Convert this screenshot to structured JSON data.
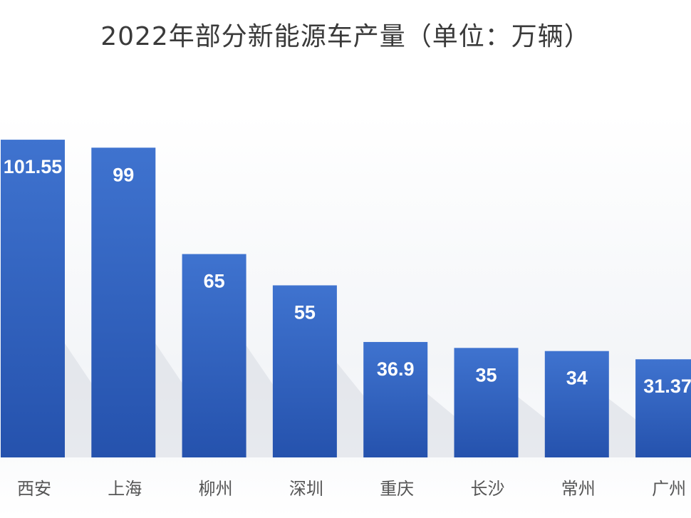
{
  "chart_data": {
    "type": "bar",
    "title": "2022年部分新能源车产量（单位：万辆）",
    "categories": [
      "西安",
      "上海",
      "柳州",
      "深圳",
      "重庆",
      "长沙",
      "常州",
      "广州"
    ],
    "values": [
      101.55,
      99,
      65,
      55,
      36.9,
      35,
      34,
      31.37
    ],
    "data_labels": [
      "101.55",
      "99",
      "65",
      "55",
      "36.9",
      "35",
      "34",
      "31.37"
    ],
    "xlabel": "",
    "ylabel": "",
    "ylim": [
      0,
      115
    ],
    "grid": false,
    "legend": "none",
    "colors": {
      "bar_top": "#3f73cf",
      "bar_bottom": "#2552ad",
      "label": "#ffffff",
      "tick": "#555555"
    }
  }
}
